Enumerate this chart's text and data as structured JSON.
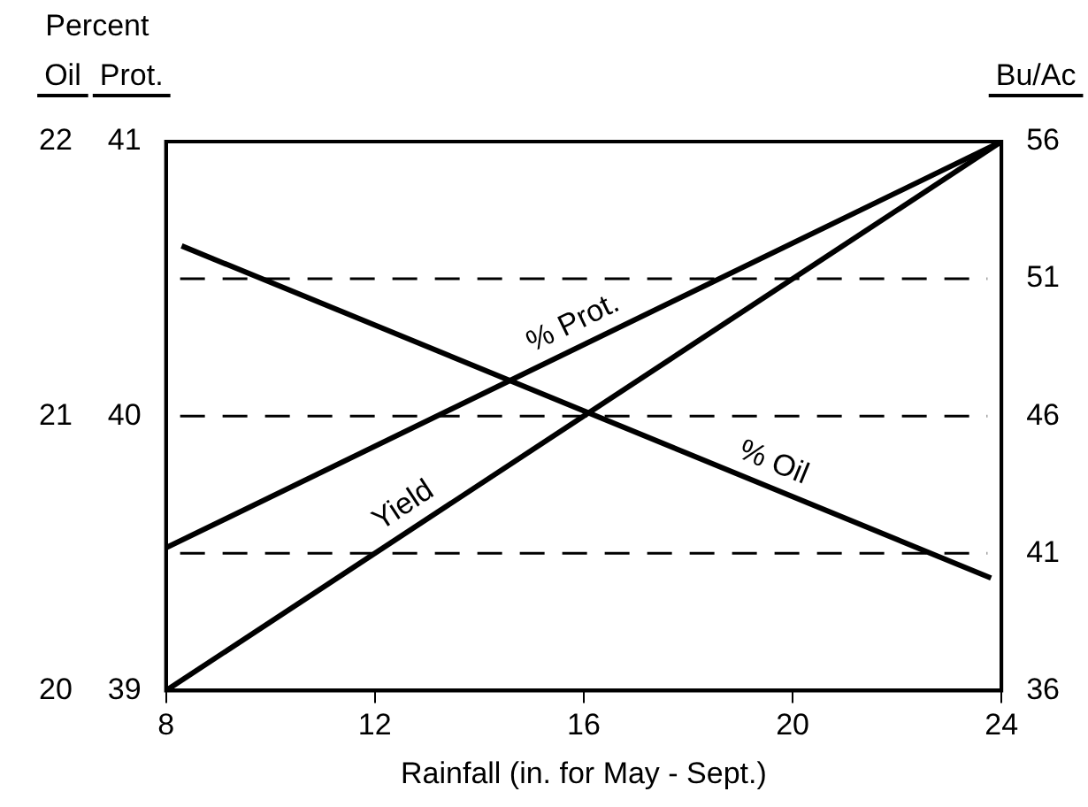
{
  "chart_data": {
    "type": "line",
    "xlabel": "Rainfall (in. for May - Sept.)",
    "ylabel": "Prot.",
    "y2label": "Bu/Ac",
    "y3label": "Oil",
    "annotations": [
      "Percent"
    ],
    "xlim": [
      8,
      24
    ],
    "xticks": [
      8,
      12,
      16,
      20,
      24
    ],
    "ylim": [
      39,
      41
    ],
    "yticks": [
      39,
      40,
      41
    ],
    "y2lim": [
      36,
      56
    ],
    "y2ticks": [
      36,
      41,
      46,
      51,
      56
    ],
    "y3lim": [
      20,
      22
    ],
    "y3ticks": [
      20,
      21,
      22
    ],
    "series": [
      {
        "name": "% Oil",
        "color": "#000000",
        "axis": "y3",
        "x": [
          8.3,
          23.8
        ],
        "values": [
          21.62,
          20.41
        ]
      },
      {
        "name": "% Prot.",
        "color": "#000000",
        "axis": "y",
        "x": [
          8,
          24
        ],
        "values": [
          39.52,
          41
        ]
      },
      {
        "name": "Yield",
        "color": "#000000",
        "axis": "y2",
        "x": [
          8,
          24
        ],
        "values": [
          36,
          56
        ]
      }
    ],
    "ref_lines": [
      {
        "axis": "y2",
        "value": 51,
        "color": "#000000",
        "line_style": "dashed"
      },
      {
        "axis": "y2",
        "value": 46,
        "color": "#000000",
        "line_style": "dashed"
      },
      {
        "axis": "y2",
        "value": 41,
        "color": "#000000",
        "line_style": "dashed"
      }
    ]
  }
}
